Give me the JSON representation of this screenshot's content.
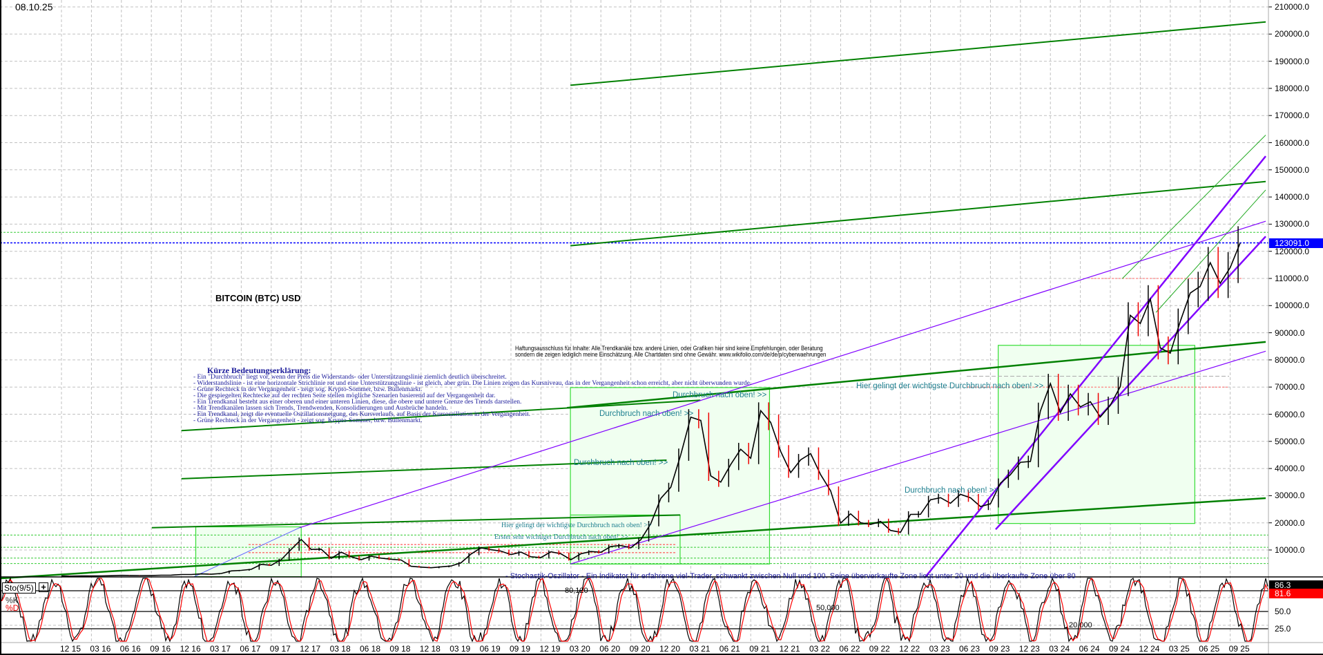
{
  "header": {
    "date": "08.10.25"
  },
  "chart_data": {
    "type": "line",
    "title": "BITCOIN (BTC) USD",
    "ylim": [
      0,
      210000
    ],
    "y_ticks": [
      "210000.0",
      "200000.0",
      "190000.0",
      "180000.0",
      "170000.0",
      "160000.0",
      "150000.0",
      "140000.0",
      "130000.0",
      "120000.0",
      "110000.0",
      "100000.0",
      "90000.0",
      "80000.0",
      "70000.0",
      "60000.0",
      "50000.0",
      "40000.0",
      "30000.0",
      "20000.0",
      "10000.0"
    ],
    "last_price_label": "123091.0",
    "x_ticks": [
      "12 15",
      "03 16",
      "06 16",
      "09 16",
      "12 16",
      "03 17",
      "06 17",
      "09 17",
      "12 17",
      "03 18",
      "06 18",
      "09 18",
      "12 18",
      "03 19",
      "06 19",
      "09 19",
      "12 19",
      "03 20",
      "06 20",
      "09 20",
      "12 20",
      "03 21",
      "06 21",
      "09 21",
      "12 21",
      "03 22",
      "06 22",
      "09 22",
      "12 22",
      "03 23",
      "06 23",
      "09 23",
      "12 23",
      "03 24",
      "06 24",
      "09 24",
      "12 24",
      "03 25",
      "06 25",
      "09 25"
    ],
    "x_start": "2015-12",
    "grid": true,
    "series": [
      {
        "values": [
          430,
          370,
          440,
          420,
          450,
          530,
          670,
          620,
          575,
          610,
          700,
          740,
          960,
          970,
          1190,
          1080,
          1350,
          2300,
          2500,
          2870,
          4700,
          4340,
          6470,
          10200,
          13900,
          10200,
          10300,
          6900,
          9200,
          7500,
          6400,
          7700,
          7000,
          6600,
          6300,
          4000,
          3700,
          3450,
          3800,
          4100,
          5300,
          8500,
          10800,
          10100,
          9600,
          8300,
          9200,
          7500,
          7200,
          9350,
          8600,
          6400,
          8600,
          9450,
          9150,
          11300,
          11650,
          10800,
          13800,
          19700,
          29000,
          33100,
          45100,
          58900,
          57700,
          37300,
          35000,
          41500,
          47100,
          43800,
          61300,
          57000,
          46300,
          38500,
          43200,
          45500,
          37700,
          31800,
          19900,
          23300,
          20050,
          19400,
          20500,
          17200,
          16550,
          23100,
          23150,
          28500,
          29250,
          27200,
          30500,
          29200,
          26000,
          27000,
          34600,
          37700,
          42300,
          42600,
          61200,
          71300,
          60600,
          67500,
          62700,
          64600,
          59000,
          63300,
          70200,
          96400,
          93400,
          102400,
          84400,
          82500,
          94200,
          104600,
          107100,
          115800,
          108200,
          114000,
          123091
        ]
      }
    ],
    "oscillator": {
      "name": "Sto(9/5)",
      "k_label": "%K",
      "d_label": "%D",
      "k_last": "86.3",
      "d_last": "81.6",
      "y_ticks": [
        "50.0",
        "25.0"
      ],
      "levels": [
        "80,120",
        "50,000",
        "20,000"
      ],
      "colors": {
        "k": "#000000",
        "d": "#ff0000"
      }
    },
    "colors": {
      "trend_green": "#008000",
      "trend_purple": "#8000ff",
      "last_price_tag": "#0000ff"
    }
  },
  "legend": {
    "heading": "Kürze Bedeutungserklärung:",
    "lines": [
      "- Ein \"Durchbruch\" liegt vor, wenn der Preis die Widerstands- oder Unterstützungslinie ziemlich deutlich überschreitet.",
      "- Widerstandslinie - ist eine horizontale Strichlinie rot und eine Unterstützungslinie - ist gleich, aber grün. Die Linien zeigen das Kursniveau, das in der Vergangenheit schon erreicht, aber nicht überwunden wurde.",
      "- Grüne Rechteck in der Vergangenheit - zeigt sog. Krypto-Sommer, bzw. Bullenmarkt.",
      "- Die gespiegelten Rechtecke auf der rechten Seite stellen mögliche Szenarien basierend auf der Vergangenheit dar.",
      "- Ein Trendkanal besteht aus einer oberen und einer unteren Linien, diese, die obere und untere Grenze des Trends darstellen.",
      "- Mit Trendkanälen lassen sich Trends, Trendwenden, Konsolidierungen und Ausbrüche handeln.",
      "- Ein Trendkanal, zeigt die eventuelle Oszillationsneigung, des Kursverlaufs, auf Basis der Kursoszillation in der Vergangenheit.",
      "- Grüne Rechteck in der Vergangenheit - zeigt sog. Krypto-Sommer, bzw. Bullenmarkt."
    ]
  },
  "disclaimer": {
    "line1": "Haftungsausschluss für Inhalte: Alle Trendkanäle bzw. andere Linien, oder Grafiken hier sind keine Empfehlungen, oder Beratung",
    "line2": "sondern die zeigen lediglich meine  Einschätzung. Alle Chartdaten sind ohne Gewähr.  www.wikifolio.com/de/de/p/cyberwaehrungen"
  },
  "annotations": {
    "durchbruch_1": "Durchbruch nach oben! >>",
    "durchbruch_2": "Durchbruch nach oben! >>",
    "durchbruch_3": "Durchbruch nach oben! >>",
    "durchbruch_4": "Durchbruch nach oben! >>",
    "wichtigste_1": "Hier gelingt der wichtigste Durchbruch nach oben! >>",
    "wichtigste_2": "Hier gelingt der wichtigste Durchbruch nach oben! >>",
    "erster": "Erster sehr wichtiger Durchbruch nach oben! >>",
    "stochastik": "- Stochastik-Oszillator - Ein Indikator  für erfahrene viel-Trader, schwankt zwischen Null und 100. Seine überverkaufte Zone  liegt unter 20 und die überkaufte Zone  über 80"
  }
}
